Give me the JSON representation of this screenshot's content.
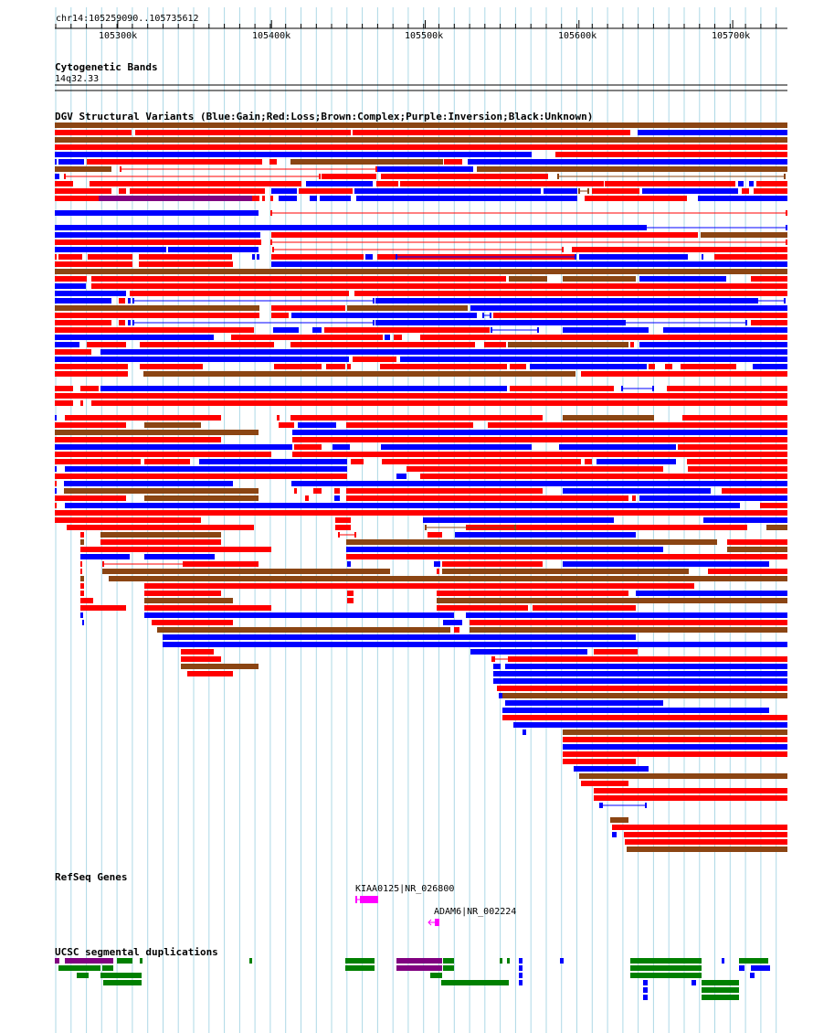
{
  "browser": {
    "location": "chr14:105259090..105735612",
    "ruler_ticks": [
      "105300k",
      "105400k",
      "105500k",
      "105600k",
      "105700k"
    ],
    "tick_values": [
      105300000,
      105400000,
      105500000,
      105600000,
      105700000
    ],
    "view_start": 105259090,
    "view_end": 105735612
  },
  "tracks": {
    "cytoband": {
      "title": "Cytogenetic Bands",
      "band_label": "14q32.33"
    },
    "dgv": {
      "title": "DGV Structural Variants (Blue:Gain;Red:Loss;Brown:Complex;Purple:Inversion;Black:Unknown)"
    },
    "refseq": {
      "title": "RefSeq Genes",
      "genes": [
        {
          "label": "KIAA0125|NR_026800",
          "color": "#ff00ff",
          "strand": "+"
        },
        {
          "label": "ADAM6|NR_002224",
          "color": "#ff00ff",
          "strand": "-"
        }
      ]
    },
    "segdup": {
      "title": "UCSC segmental duplications"
    }
  },
  "colors": {
    "gain": "#0000ff",
    "loss": "#ff0000",
    "complex": "#8b4513",
    "inversion": "#800080",
    "segdup_green": "#008000",
    "segdup_purple": "#800080",
    "segdup_blue": "#0000ff",
    "gridline": "#add8e6"
  }
}
